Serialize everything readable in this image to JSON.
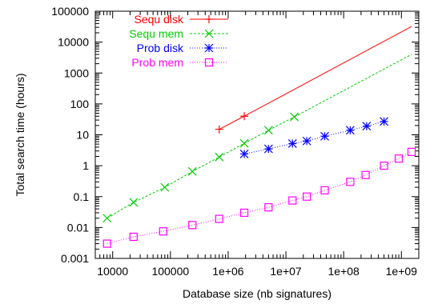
{
  "chart_data": {
    "type": "line",
    "xlabel": "Database size (nb signatures)",
    "ylabel": "Total search time (hours)",
    "xscale": "log",
    "yscale": "log",
    "xlim": [
      5000,
      2000000000
    ],
    "ylim": [
      0.001,
      100000
    ],
    "x_ticks": [
      {
        "value": 10000,
        "label": "10000"
      },
      {
        "value": 100000,
        "label": "100000"
      },
      {
        "value": 1000000,
        "label": "1e+06"
      },
      {
        "value": 10000000,
        "label": "1e+07"
      },
      {
        "value": 100000000,
        "label": "1e+08"
      },
      {
        "value": 1000000000,
        "label": "1e+09"
      }
    ],
    "y_ticks": [
      {
        "value": 0.001,
        "label": "0.001"
      },
      {
        "value": 0.01,
        "label": "0.01"
      },
      {
        "value": 0.1,
        "label": "0.1"
      },
      {
        "value": 1,
        "label": "1"
      },
      {
        "value": 10,
        "label": "10"
      },
      {
        "value": 100,
        "label": "100"
      },
      {
        "value": 1000,
        "label": "1000"
      },
      {
        "value": 10000,
        "label": "10000"
      },
      {
        "value": 100000,
        "label": "100000"
      }
    ],
    "legend_position": "top-left",
    "series": [
      {
        "name": "Sequ disk",
        "color": "#ff0000",
        "marker": "plus",
        "dash": "solid",
        "points": [
          [
            700000,
            15
          ],
          [
            1900000,
            40
          ]
        ],
        "extrapolation": [
          [
            1900000,
            40
          ],
          [
            1500000000,
            32000
          ]
        ]
      },
      {
        "name": "Sequ mem",
        "color": "#00cc00",
        "marker": "cross",
        "dash": "dashed",
        "points": [
          [
            8000,
            0.02
          ],
          [
            23000,
            0.065
          ],
          [
            80000,
            0.2
          ],
          [
            240000,
            0.65
          ],
          [
            700000,
            1.9
          ],
          [
            1900000,
            5.3
          ],
          [
            5000000,
            14
          ],
          [
            14000000,
            38
          ]
        ],
        "extrapolation": [
          [
            14000000,
            38
          ],
          [
            1500000000,
            4000
          ]
        ]
      },
      {
        "name": "Prob disk",
        "color": "#0000ff",
        "marker": "star",
        "dash": "dotted",
        "points": [
          [
            1900000,
            2.4
          ],
          [
            5000000,
            3.5
          ],
          [
            13000000,
            5.2
          ],
          [
            23000000,
            6.3
          ],
          [
            47000000,
            9
          ],
          [
            130000000,
            14
          ],
          [
            250000000,
            19
          ],
          [
            500000000,
            27
          ]
        ]
      },
      {
        "name": "Prob mem",
        "color": "#ff00ff",
        "marker": "square",
        "dash": "dotted",
        "points": [
          [
            8000,
            0.003
          ],
          [
            23000,
            0.005
          ],
          [
            75000,
            0.0075
          ],
          [
            240000,
            0.012
          ],
          [
            700000,
            0.019
          ],
          [
            1900000,
            0.03
          ],
          [
            5000000,
            0.045
          ],
          [
            13000000,
            0.075
          ],
          [
            23000000,
            0.1
          ],
          [
            47000000,
            0.16
          ],
          [
            130000000,
            0.3
          ],
          [
            240000000,
            0.5
          ],
          [
            500000000,
            1.0
          ],
          [
            900000000,
            1.7
          ],
          [
            1500000000,
            2.8
          ]
        ]
      }
    ]
  }
}
